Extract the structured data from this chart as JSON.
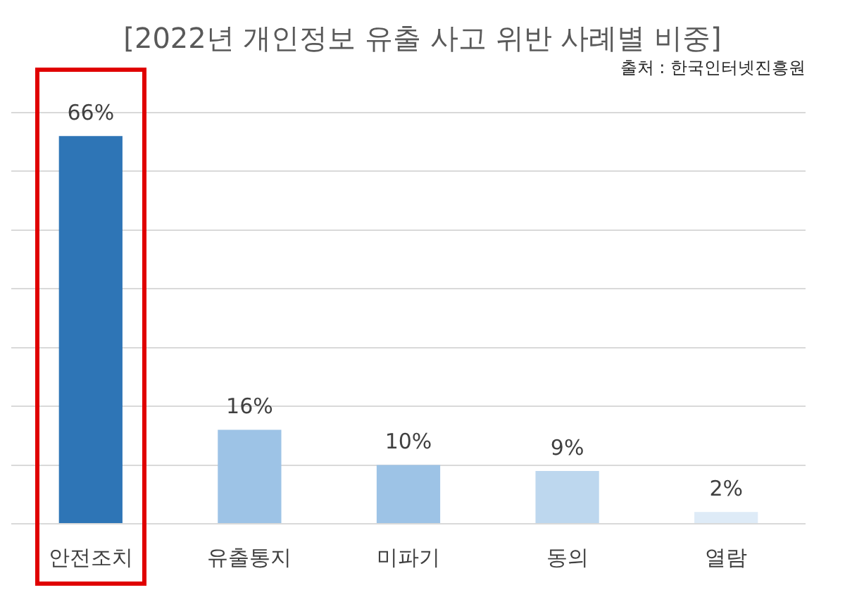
{
  "chart_data": {
    "type": "bar",
    "title": "[2022년 개인정보 유출 사고 위반 사례별 비중]",
    "annotations": [
      "출처 : 한국인터넷진흥원"
    ],
    "categories": [
      "안전조치",
      "유출통지",
      "미파기",
      "동의",
      "열람"
    ],
    "values": [
      66,
      16,
      10,
      9,
      2
    ],
    "value_labels": [
      "66%",
      "16%",
      "10%",
      "9%",
      "2%"
    ],
    "colors": [
      "#2e75b6",
      "#9dc3e6",
      "#9dc3e6",
      "#bdd7ee",
      "#deebf7"
    ],
    "ylim": [
      0,
      70
    ],
    "yticks": [
      {
        "value": 0,
        "label": null
      },
      {
        "value": 10,
        "label": null
      },
      {
        "value": 20,
        "label": null
      },
      {
        "value": 30,
        "label": null
      },
      {
        "value": 40,
        "label": null
      },
      {
        "value": 50,
        "label": null
      },
      {
        "value": 60,
        "label": null
      },
      {
        "value": 70,
        "label": null
      }
    ],
    "tick_labels": "x",
    "grid": "y",
    "legend": false
  }
}
